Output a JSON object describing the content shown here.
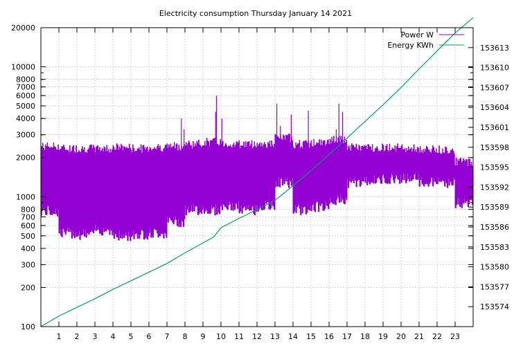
{
  "chart_data": {
    "type": "line",
    "title": "Electricity consumption Thursday January 14 2021",
    "xlabel": "",
    "ylabel": "",
    "y2label": "",
    "xlim": [
      0,
      24
    ],
    "ylim": [
      100,
      20000
    ],
    "y_scale": "log",
    "y2lim": [
      153571,
      153616
    ],
    "grid": true,
    "legend_position": "top-right",
    "x_ticks": [
      "1",
      "2",
      "3",
      "4",
      "5",
      "6",
      "7",
      "8",
      "9",
      "10",
      "11",
      "12",
      "13",
      "14",
      "15",
      "16",
      "17",
      "18",
      "19",
      "20",
      "21",
      "22",
      "23"
    ],
    "y_ticks": [
      {
        "value": 100,
        "label": "100"
      },
      {
        "value": 200,
        "label": "200"
      },
      {
        "value": 300,
        "label": "300"
      },
      {
        "value": 400,
        "label": "400"
      },
      {
        "value": 500,
        "label": "500"
      },
      {
        "value": 600,
        "label": "600"
      },
      {
        "value": 700,
        "label": "700"
      },
      {
        "value": 800,
        "label": "800"
      },
      {
        "value": 1000,
        "label": "1000"
      },
      {
        "value": 2000,
        "label": "2000"
      },
      {
        "value": 3000,
        "label": "3000"
      },
      {
        "value": 4000,
        "label": "4000"
      },
      {
        "value": 5000,
        "label": "5000"
      },
      {
        "value": 6000,
        "label": "6000"
      },
      {
        "value": 7000,
        "label": "7000"
      },
      {
        "value": 8000,
        "label": "8000"
      },
      {
        "value": 10000,
        "label": "10000"
      },
      {
        "value": 20000,
        "label": "20000"
      }
    ],
    "y2_ticks": [
      "153574",
      "153577",
      "153580",
      "153583",
      "153586",
      "153589",
      "153592",
      "153595",
      "153598",
      "153601",
      "153604",
      "153607",
      "153610",
      "153613"
    ],
    "series": [
      {
        "name": "Power W",
        "axis": "y",
        "color": "#9400d3",
        "style": "dense on/off cycling (approx. 20 cycles per hour) between low and high levels",
        "segments": [
          {
            "x_start": 0.0,
            "x_end": 1.0,
            "low": 780,
            "high": 2500
          },
          {
            "x_start": 1.0,
            "x_end": 2.0,
            "low": 530,
            "high": 2400
          },
          {
            "x_start": 2.0,
            "x_end": 3.0,
            "low": 520,
            "high": 2400
          },
          {
            "x_start": 3.0,
            "x_end": 4.0,
            "low": 560,
            "high": 2400
          },
          {
            "x_start": 4.0,
            "x_end": 5.0,
            "low": 500,
            "high": 2450
          },
          {
            "x_start": 5.0,
            "x_end": 6.0,
            "low": 520,
            "high": 2400
          },
          {
            "x_start": 6.0,
            "x_end": 7.0,
            "low": 530,
            "high": 2450
          },
          {
            "x_start": 7.0,
            "x_end": 8.0,
            "low": 650,
            "high": 2500
          },
          {
            "x_start": 8.0,
            "x_end": 9.0,
            "low": 800,
            "high": 2600
          },
          {
            "x_start": 9.0,
            "x_end": 10.0,
            "low": 800,
            "high": 2700
          },
          {
            "x_start": 10.0,
            "x_end": 11.0,
            "low": 850,
            "high": 2600
          },
          {
            "x_start": 11.0,
            "x_end": 12.0,
            "low": 800,
            "high": 2600
          },
          {
            "x_start": 12.0,
            "x_end": 13.0,
            "low": 850,
            "high": 2600
          },
          {
            "x_start": 13.0,
            "x_end": 14.0,
            "low": 1300,
            "high": 2900
          },
          {
            "x_start": 14.0,
            "x_end": 15.0,
            "low": 800,
            "high": 2600
          },
          {
            "x_start": 15.0,
            "x_end": 16.0,
            "low": 850,
            "high": 2650
          },
          {
            "x_start": 16.0,
            "x_end": 17.0,
            "low": 950,
            "high": 2800
          },
          {
            "x_start": 17.0,
            "x_end": 18.0,
            "low": 1300,
            "high": 2450
          },
          {
            "x_start": 18.0,
            "x_end": 19.0,
            "low": 1350,
            "high": 2450
          },
          {
            "x_start": 19.0,
            "x_end": 20.0,
            "low": 1400,
            "high": 2450
          },
          {
            "x_start": 20.0,
            "x_end": 21.0,
            "low": 1400,
            "high": 2400
          },
          {
            "x_start": 21.0,
            "x_end": 22.0,
            "low": 1300,
            "high": 2350
          },
          {
            "x_start": 22.0,
            "x_end": 23.0,
            "low": 1300,
            "high": 2350
          },
          {
            "x_start": 23.0,
            "x_end": 24.0,
            "low": 900,
            "high": 1900
          }
        ],
        "spikes": [
          {
            "x": 7.8,
            "value": 4000
          },
          {
            "x": 7.95,
            "value": 3300
          },
          {
            "x": 9.75,
            "value": 6000
          },
          {
            "x": 9.7,
            "value": 4500
          },
          {
            "x": 10.05,
            "value": 4000
          },
          {
            "x": 13.1,
            "value": 5200
          },
          {
            "x": 13.3,
            "value": 3500
          },
          {
            "x": 13.9,
            "value": 4300
          },
          {
            "x": 14.85,
            "value": 4600
          },
          {
            "x": 16.55,
            "value": 5200
          },
          {
            "x": 16.75,
            "value": 4500
          },
          {
            "x": 16.4,
            "value": 3300
          }
        ]
      },
      {
        "name": "Energy KWh",
        "axis": "y2",
        "color": "#009e73",
        "x": [
          0,
          1,
          2,
          3,
          4,
          5,
          6,
          7,
          8,
          9,
          9.6,
          10,
          11,
          12,
          13,
          14,
          15,
          16,
          17,
          18,
          19,
          20,
          21,
          22,
          23,
          24
        ],
        "values": [
          153571.0,
          153572.6,
          153573.9,
          153575.2,
          153576.6,
          153577.9,
          153579.2,
          153580.5,
          153582.1,
          153583.6,
          153584.5,
          153585.9,
          153587.3,
          153588.6,
          153590.0,
          153592.2,
          153594.5,
          153596.9,
          153599.4,
          153601.9,
          153604.4,
          153607.0,
          153609.8,
          153612.5,
          153615.2,
          153617.5
        ]
      }
    ]
  }
}
